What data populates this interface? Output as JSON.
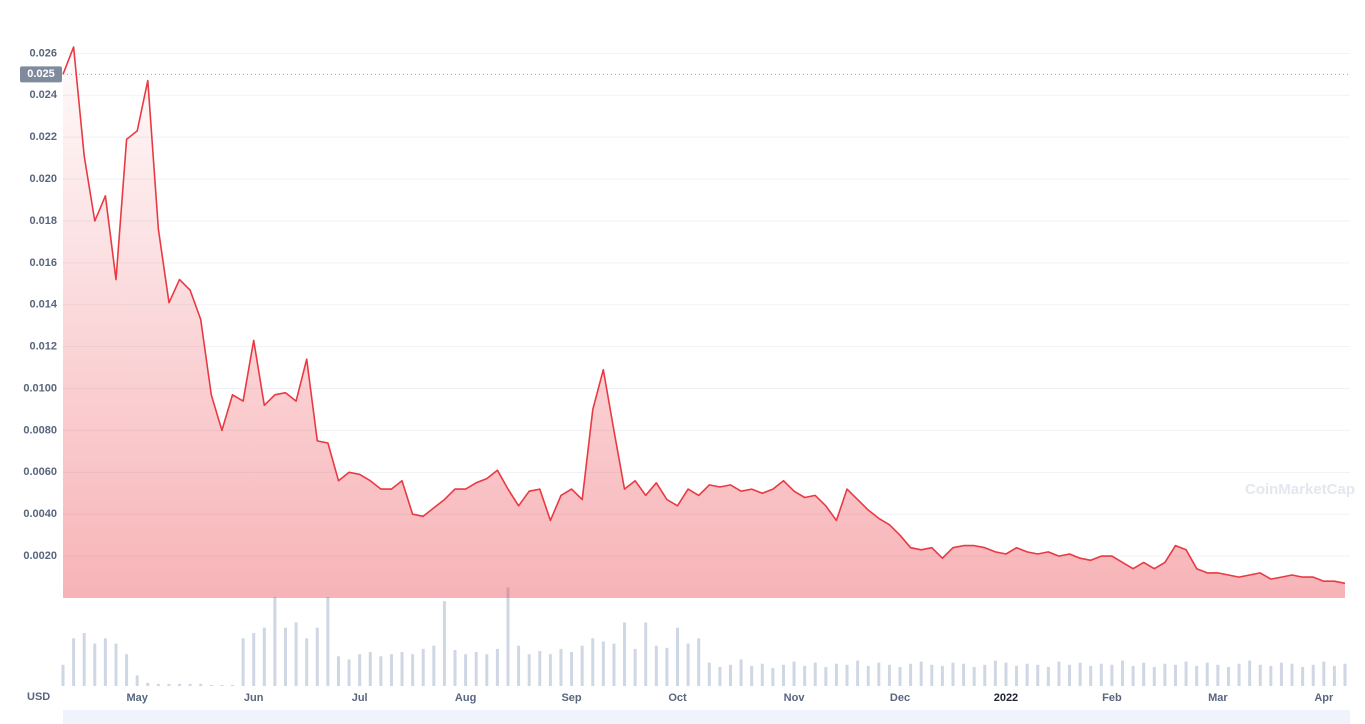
{
  "chart_data": {
    "type": "line",
    "color": "#ea3943",
    "volume_color": "#cfd6e4",
    "currency": "USD",
    "watermark": "CoinMarketCap",
    "reference_line": 0.025,
    "ylim": [
      0,
      0.028
    ],
    "yticks": [
      {
        "value": 0.002,
        "label": "0.0020"
      },
      {
        "value": 0.004,
        "label": "0.0040"
      },
      {
        "value": 0.006,
        "label": "0.0060"
      },
      {
        "value": 0.008,
        "label": "0.0080"
      },
      {
        "value": 0.01,
        "label": "0.0100"
      },
      0.012,
      0.014,
      0.016,
      0.018,
      {
        "value": 0.02,
        "label": "0.020"
      },
      0.022,
      0.024,
      0.026
    ],
    "grid": true,
    "y2lim": [
      0,
      100
    ],
    "categories": [
      null,
      null,
      null,
      null,
      null,
      null,
      null,
      "May",
      null,
      null,
      null,
      null,
      null,
      null,
      null,
      null,
      null,
      null,
      "Jun",
      null,
      null,
      null,
      null,
      null,
      null,
      null,
      null,
      null,
      "Jul",
      null,
      null,
      null,
      null,
      null,
      null,
      null,
      null,
      null,
      "Aug",
      null,
      null,
      null,
      null,
      null,
      null,
      null,
      null,
      null,
      "Sep",
      null,
      null,
      null,
      null,
      null,
      null,
      null,
      null,
      null,
      "Oct",
      null,
      null,
      null,
      null,
      null,
      null,
      null,
      null,
      null,
      null,
      "Nov",
      null,
      null,
      null,
      null,
      null,
      null,
      null,
      null,
      null,
      "Dec",
      null,
      null,
      null,
      null,
      null,
      null,
      null,
      null,
      null,
      "2022",
      null,
      null,
      null,
      null,
      null,
      null,
      null,
      null,
      null,
      "Feb",
      null,
      null,
      null,
      null,
      null,
      null,
      null,
      null,
      null,
      "Mar",
      null,
      null,
      null,
      null,
      null,
      null,
      null,
      null,
      null,
      "Apr",
      null,
      null
    ],
    "values": [
      0.025,
      0.0263,
      0.0211,
      0.018,
      0.0192,
      0.0152,
      0.0219,
      0.0223,
      0.0247,
      0.0176,
      0.0141,
      0.0152,
      0.0147,
      0.0133,
      0.0097,
      0.008,
      0.0097,
      0.0094,
      0.0123,
      0.0092,
      0.0097,
      0.0098,
      0.0094,
      0.0114,
      0.0075,
      0.0074,
      0.0056,
      0.006,
      0.0059,
      0.0056,
      0.0052,
      0.0052,
      0.0056,
      0.004,
      0.0039,
      0.0043,
      0.0047,
      0.0052,
      0.0052,
      0.0055,
      0.0057,
      0.0061,
      0.0052,
      0.0044,
      0.0051,
      0.0052,
      0.0037,
      0.0049,
      0.0052,
      0.0047,
      0.009,
      0.0109,
      0.008,
      0.0052,
      0.0056,
      0.0049,
      0.0055,
      0.0047,
      0.0044,
      0.0052,
      0.0049,
      0.0054,
      0.0053,
      0.0054,
      0.0051,
      0.0052,
      0.005,
      0.0052,
      0.0056,
      0.0051,
      0.0048,
      0.0049,
      0.0044,
      0.0037,
      0.0052,
      0.0047,
      0.0042,
      0.0038,
      0.0035,
      0.003,
      0.0024,
      0.0023,
      0.0024,
      0.0019,
      0.0024,
      0.0025,
      0.0025,
      0.0024,
      0.0022,
      0.0021,
      0.0024,
      0.0022,
      0.0021,
      0.0022,
      0.002,
      0.0021,
      0.0019,
      0.0018,
      0.002,
      0.002,
      0.0017,
      0.0014,
      0.0017,
      0.0014,
      0.0017,
      0.0025,
      0.0023,
      0.0014,
      0.0012,
      0.0012,
      0.0011,
      0.001,
      0.0011,
      0.0012,
      0.0009,
      0.001,
      0.0011,
      0.001,
      0.001,
      0.0008,
      0.0008,
      0.0007
    ],
    "volume_values": [
      20,
      45,
      50,
      40,
      45,
      40,
      30,
      10,
      3,
      2,
      2,
      2,
      2,
      2,
      1,
      1,
      1,
      45,
      50,
      55,
      84,
      55,
      60,
      45,
      55,
      84,
      28,
      25,
      30,
      32,
      28,
      30,
      32,
      30,
      35,
      38,
      80,
      34,
      30,
      32,
      30,
      35,
      93,
      38,
      30,
      33,
      30,
      35,
      32,
      38,
      45,
      42,
      40,
      60,
      35,
      60,
      38,
      36,
      55,
      40,
      45,
      22,
      18,
      20,
      25,
      19,
      21,
      17,
      20,
      23,
      19,
      22,
      18,
      21,
      20,
      24,
      19,
      22,
      20,
      18,
      21,
      23,
      20,
      19,
      22,
      21,
      18,
      20,
      24,
      22,
      19,
      21,
      20,
      18,
      23,
      20,
      22,
      19,
      21,
      20,
      24,
      19,
      22,
      18,
      21,
      20,
      23,
      19,
      22,
      20,
      18,
      21,
      24,
      20,
      19,
      22,
      21,
      18,
      20,
      23,
      19,
      21
    ]
  }
}
